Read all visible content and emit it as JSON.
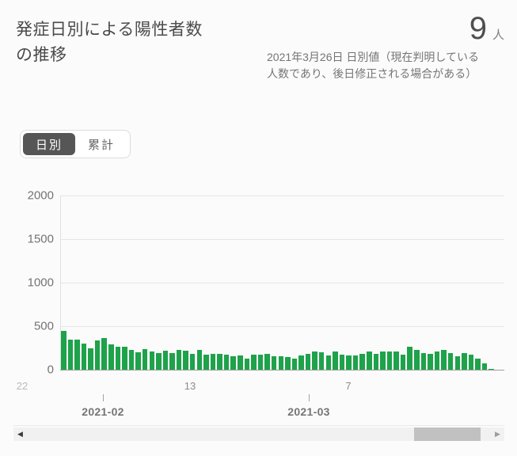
{
  "header": {
    "title": "発症日別による陽性者数\nの推移",
    "value": "9",
    "unit": "人",
    "subtitle": "2021年3月26日 日別値（現在判明している\n人数であり、後日修正される場合がある）"
  },
  "toggle": {
    "options": [
      {
        "label": "日別",
        "selected": true
      },
      {
        "label": "累計",
        "selected": false
      }
    ]
  },
  "colors": {
    "bar_green": "#1ea24a",
    "toggle_selected_bg": "#565656",
    "text_dark": "#4a4a4a",
    "text_grey": "#757575"
  },
  "scrollbar": {
    "left_arrow": "◀",
    "right_arrow": "▶"
  },
  "chart_data": {
    "type": "bar",
    "title": "発症日別による陽性者数の推移",
    "xlabel": "",
    "ylabel": "",
    "ylim": [
      0,
      2000
    ],
    "yticks": [
      0,
      500,
      1000,
      1500,
      2000
    ],
    "grid": true,
    "legend": "none",
    "bar_color": "#1ea24a",
    "xticks": [
      {
        "label": "22",
        "date": "2021-01-22"
      },
      {
        "label": "13",
        "date": "2021-02-13"
      },
      {
        "label": "7",
        "date": "2021-03-07"
      }
    ],
    "month_ticks": [
      {
        "label": "2021-02"
      },
      {
        "label": "2021-03"
      }
    ],
    "x": [
      "2021-01-22",
      "2021-01-23",
      "2021-01-24",
      "2021-01-25",
      "2021-01-26",
      "2021-01-27",
      "2021-01-28",
      "2021-01-29",
      "2021-01-30",
      "2021-01-31",
      "2021-02-01",
      "2021-02-02",
      "2021-02-03",
      "2021-02-04",
      "2021-02-05",
      "2021-02-06",
      "2021-02-07",
      "2021-02-08",
      "2021-02-09",
      "2021-02-10",
      "2021-02-11",
      "2021-02-12",
      "2021-02-13",
      "2021-02-14",
      "2021-02-15",
      "2021-02-16",
      "2021-02-17",
      "2021-02-18",
      "2021-02-19",
      "2021-02-20",
      "2021-02-21",
      "2021-02-22",
      "2021-02-23",
      "2021-02-24",
      "2021-02-25",
      "2021-02-26",
      "2021-02-27",
      "2021-02-28",
      "2021-03-01",
      "2021-03-02",
      "2021-03-03",
      "2021-03-04",
      "2021-03-05",
      "2021-03-06",
      "2021-03-07",
      "2021-03-08",
      "2021-03-09",
      "2021-03-10",
      "2021-03-11",
      "2021-03-12",
      "2021-03-13",
      "2021-03-14",
      "2021-03-15",
      "2021-03-16",
      "2021-03-17",
      "2021-03-18",
      "2021-03-19",
      "2021-03-20",
      "2021-03-21",
      "2021-03-22",
      "2021-03-23",
      "2021-03-24",
      "2021-03-25",
      "2021-03-26"
    ],
    "values": [
      450,
      350,
      345,
      300,
      250,
      335,
      360,
      290,
      265,
      260,
      230,
      200,
      240,
      210,
      195,
      215,
      195,
      230,
      215,
      185,
      230,
      175,
      185,
      185,
      175,
      155,
      160,
      130,
      175,
      170,
      185,
      155,
      155,
      145,
      125,
      160,
      180,
      205,
      200,
      160,
      210,
      175,
      160,
      160,
      180,
      205,
      185,
      205,
      205,
      210,
      170,
      260,
      225,
      195,
      185,
      210,
      230,
      195,
      155,
      190,
      170,
      125,
      70,
      9
    ]
  }
}
